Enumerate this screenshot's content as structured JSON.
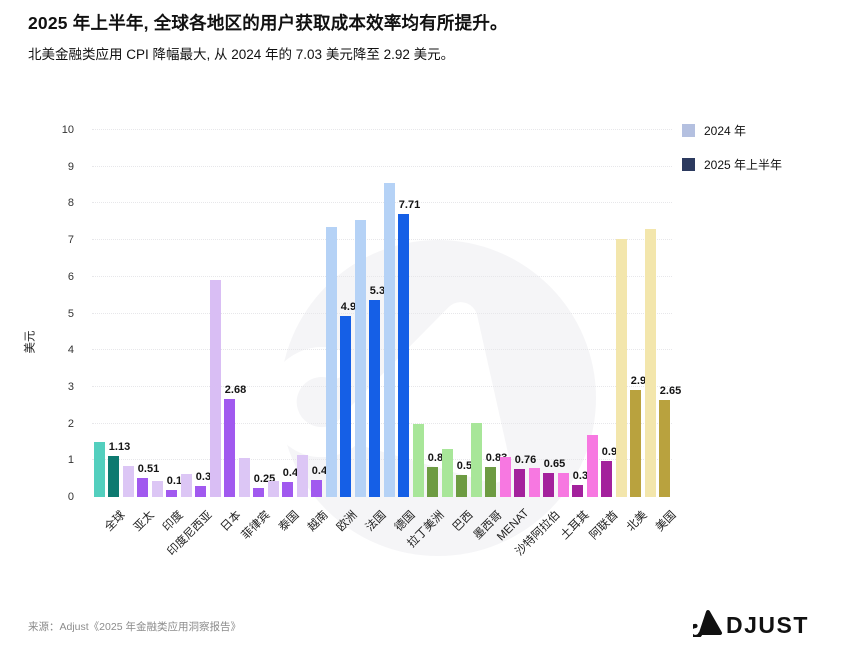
{
  "header": {
    "title": "2025 年上半年, 全球各地区的用户获取成本效率均有所提升。",
    "subtitle": "北美金融类应用 CPI 降幅最大, 从 2024 年的 7.03 美元降至 2.92 美元。"
  },
  "legend": [
    {
      "label": "2024 年",
      "color": "#b4c0e0"
    },
    {
      "label": "2025 年上半年",
      "color": "#2c3a5f"
    }
  ],
  "chart_data": {
    "type": "bar",
    "title": "2025 年上半年, 全球各地区的用户获取成本效率均有所提升。",
    "ylabel": "美元",
    "xlabel": "",
    "ylim": [
      0,
      10
    ],
    "ytick_step": 1,
    "grid": "horizontal-dotted",
    "legend_position": "top-right",
    "categories": [
      "全球",
      "亚太",
      "印度",
      "印度尼西亚",
      "日本",
      "菲律宾",
      "泰国",
      "越南",
      "欧洲",
      "法国",
      "德国",
      "拉丁美洲",
      "巴西",
      "墨西哥",
      "MENAT",
      "沙特阿拉伯",
      "土耳其",
      "阿联酋",
      "北美",
      "美国"
    ],
    "series": [
      {
        "name": "2024 年",
        "values": [
          1.5,
          0.85,
          0.43,
          0.62,
          5.9,
          1.05,
          0.45,
          1.15,
          7.35,
          7.55,
          8.55,
          2.0,
          1.3,
          2.02,
          1.08,
          0.78,
          0.65,
          1.7,
          7.03,
          7.3
        ],
        "labels_shown": false
      },
      {
        "name": "2025 年上半年",
        "values": [
          1.13,
          0.51,
          0.18,
          0.31,
          2.68,
          0.25,
          0.42,
          0.46,
          4.93,
          5.37,
          7.71,
          0.83,
          0.59,
          0.83,
          0.76,
          0.65,
          0.32,
          0.99,
          2.92,
          2.65
        ],
        "labels_shown": true
      }
    ],
    "bar_colors": [
      {
        "light": "#53cfbe",
        "dark": "#0d7a70"
      },
      {
        "light": "#dcc6f5",
        "dark": "#a159ef"
      },
      {
        "light": "#dcc6f5",
        "dark": "#a159ef"
      },
      {
        "light": "#dcc6f5",
        "dark": "#a159ef"
      },
      {
        "light": "#d9bef4",
        "dark": "#a159ef"
      },
      {
        "light": "#dcc6f5",
        "dark": "#a159ef"
      },
      {
        "light": "#dcc6f5",
        "dark": "#a159ef"
      },
      {
        "light": "#dcc6f5",
        "dark": "#a159ef"
      },
      {
        "light": "#b5d2f6",
        "dark": "#155fe6"
      },
      {
        "light": "#b5d2f6",
        "dark": "#155fe6"
      },
      {
        "light": "#b5d2f6",
        "dark": "#155fe6"
      },
      {
        "light": "#a8e699",
        "dark": "#6d9b42"
      },
      {
        "light": "#a8e699",
        "dark": "#6d9b42"
      },
      {
        "light": "#a8e699",
        "dark": "#6d9b42"
      },
      {
        "light": "#f778e1",
        "dark": "#a3219c"
      },
      {
        "light": "#f778e1",
        "dark": "#a3219c"
      },
      {
        "light": "#f778e1",
        "dark": "#a3219c"
      },
      {
        "light": "#f778e1",
        "dark": "#a3219c"
      },
      {
        "light": "#f3e6ac",
        "dark": "#b9a23e"
      },
      {
        "light": "#f3e6ac",
        "dark": "#b9a23e"
      }
    ],
    "watermark": "adjust-logo-circle"
  },
  "footer": {
    "source": "来源：Adjust《2025 年金融类应用洞察报告》",
    "logo_text": "DJUST",
    "logo_name": "ADJUST"
  },
  "style": {
    "watermark_circle_color": "#f5f5f7",
    "watermark_glyph_color": "#ffffff",
    "grid_color": "#e7e7ea"
  }
}
